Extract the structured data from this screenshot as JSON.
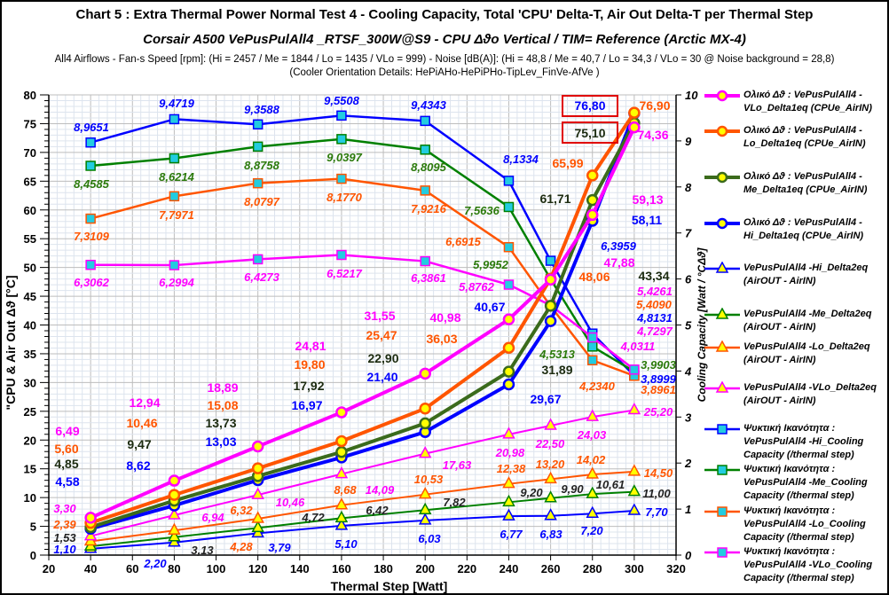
{
  "title": "Chart 5 :  Extra Thermal Power  Normal  Test  4  -  Cooling Capacity,   Total 'CPU'  Delta-T,    Air Out Delta-T per Thermal Step",
  "subtitle": "Corsair A500  VePusPulAll4 _RTSF_300W@S9 - CPU  Δϑο Vertical / TIM= Reference (Arctic MX-4)",
  "info_line1": "All4  Airflows  - Fan-s Speed [rpm]: (Hi = 2457 / Me = 1844 / Lo = 1435 / VLo = 999) - Noise  [dB(A)]: (Hi = 48,8 / Me = 40,7 / Lo = 34,3 / VLo = 30 @ Noise background = 28,8)",
  "info_line2": "(Cooler  Orientation  Details: HePiAHo-HePiPHo-TipLev_FinVe-AfVe  )",
  "colors": {
    "hi": "#0000ff",
    "me_delta1": "#3b6b1c",
    "me": "#008000",
    "lo": "#ff5500",
    "vlo": "#ff00ff",
    "marker_fill_circle": "#ffff00",
    "marker_fill_square": "#22cce0",
    "highlight_box": "#e00000"
  },
  "chart_data": {
    "type": "line",
    "xlabel": "Thermal Step [Watt]",
    "ylabel": "\"CPU  &  Air Out  Δϑ  [°C]",
    "y2label": "Cooling Capacity  [Watt / °CΔϑ]",
    "xlim": [
      20,
      320
    ],
    "ylim": [
      0,
      80
    ],
    "y2lim": [
      0,
      10
    ],
    "xticks": [
      20,
      40,
      60,
      80,
      100,
      120,
      140,
      160,
      180,
      200,
      220,
      240,
      260,
      280,
      300,
      320
    ],
    "yticks": [
      0,
      5,
      10,
      15,
      20,
      25,
      30,
      35,
      40,
      45,
      50,
      55,
      60,
      65,
      70,
      75,
      80
    ],
    "y2ticks": [
      0,
      1,
      2,
      3,
      4,
      5,
      6,
      7,
      8,
      9,
      10
    ],
    "grid": true,
    "legend_position": "right",
    "x": [
      40,
      80,
      120,
      160,
      200,
      240,
      260,
      280,
      300
    ],
    "highlighted_values": [
      "76,80",
      "75,10"
    ],
    "series": [
      {
        "name": "Ολικό Δϑ : VePusPulAll4 - VLo_Delta1eq  (CPUe_AirIN)",
        "key": "vlo",
        "kind": "delta1",
        "axis": "left",
        "values": [
          6.49,
          12.94,
          18.89,
          24.81,
          31.55,
          40.98,
          47.88,
          59.13,
          74.36
        ]
      },
      {
        "name": "Ολικό Δϑ : VePusPulAll4 - Lo_Delta1eq  (CPUe_AirIN)",
        "key": "lo",
        "kind": "delta1",
        "axis": "left",
        "values": [
          5.6,
          10.46,
          15.08,
          19.8,
          25.47,
          36.03,
          48.06,
          65.99,
          76.9
        ]
      },
      {
        "name": "Ολικό Δϑ : VePusPulAll4 - Me_Delta1eq  (CPUe_AirIN)",
        "key": "me_delta1",
        "kind": "delta1",
        "axis": "left",
        "values": [
          4.85,
          9.47,
          13.73,
          17.92,
          22.9,
          31.89,
          43.34,
          61.71,
          75.1
        ]
      },
      {
        "name": "Ολικό Δϑ : VePusPulAll4 - Hi_Delta1eq  (CPUe_AirIN)",
        "key": "hi",
        "kind": "delta1",
        "axis": "left",
        "values": [
          4.58,
          8.62,
          13.03,
          16.97,
          21.4,
          29.67,
          40.67,
          58.11,
          76.8
        ]
      },
      {
        "name": "VePusPulAll4 -Hi_Delta2eq (AirOUT - AirIN)",
        "key": "hi",
        "kind": "delta2",
        "axis": "left",
        "values": [
          1.1,
          2.2,
          3.79,
          5.1,
          6.03,
          6.77,
          6.83,
          7.2,
          7.7
        ]
      },
      {
        "name": "VePusPulAll4 -Me_Delta2eq (AirOUT - AirIN)",
        "key": "me",
        "kind": "delta2",
        "axis": "left",
        "values": [
          1.53,
          3.13,
          4.72,
          6.42,
          7.82,
          9.2,
          9.9,
          10.61,
          11.0
        ]
      },
      {
        "name": "VePusPulAll4 -Lo_Delta2eq (AirOUT - AirIN)",
        "key": "lo",
        "kind": "delta2",
        "axis": "left",
        "values": [
          2.39,
          4.28,
          6.32,
          8.68,
          10.53,
          12.38,
          13.2,
          14.02,
          14.5
        ]
      },
      {
        "name": "VePusPulAll4 -VLo_Delta2eq (AirOUT - AirIN)",
        "key": "vlo",
        "kind": "delta2",
        "axis": "left",
        "values": [
          3.3,
          6.94,
          10.46,
          14.09,
          17.63,
          20.98,
          22.5,
          24.03,
          25.2
        ]
      },
      {
        "name": "Ψυκτική Ικανότητα : VePusPulAll4 -Hi_Cooling Capacity (/thermal step)",
        "key": "hi",
        "kind": "cooling",
        "axis": "right",
        "values": [
          8.9651,
          9.4719,
          9.3588,
          9.5508,
          9.4343,
          8.1334,
          6.3959,
          4.8131,
          3.8999
        ]
      },
      {
        "name": "Ψυκτική Ικανότητα : VePusPulAll4 -Me_Cooling Capacity (/thermal step)",
        "key": "me",
        "kind": "cooling",
        "axis": "right",
        "values": [
          8.4585,
          8.6214,
          8.8758,
          9.0397,
          8.8095,
          7.5636,
          5.9952,
          4.5313,
          3.9903
        ]
      },
      {
        "name": "Ψυκτική Ικανότητα : VePusPulAll4 -Lo_Cooling Capacity (/thermal step)",
        "key": "lo",
        "kind": "cooling",
        "axis": "right",
        "values": [
          7.3109,
          7.7971,
          8.0797,
          8.177,
          7.9216,
          6.6915,
          5.409,
          4.234,
          3.8961
        ]
      },
      {
        "name": "Ψυκτική Ικανότητα : VePusPulAll4 -VLo_Cooling Capacity (/thermal step)",
        "key": "vlo",
        "kind": "cooling",
        "axis": "right",
        "values": [
          6.3062,
          6.2994,
          6.4273,
          6.5217,
          6.3861,
          5.8762,
          5.4261,
          4.7297,
          4.0311
        ]
      }
    ]
  },
  "legend": [
    {
      "line1": "Ολικό Δϑ : VePusPulAll4 -",
      "line2": "VLo_Delta1eq  (CPUe_AirIN)"
    },
    {
      "line1": "Ολικό Δϑ : VePusPulAll4 -",
      "line2": "Lo_Delta1eq  (CPUe_AirIN)"
    },
    {
      "line1": "Ολικό Δϑ : VePusPulAll4 -",
      "line2": "Me_Delta1eq  (CPUe_AirIN)"
    },
    {
      "line1": "Ολικό Δϑ : VePusPulAll4 -",
      "line2": "Hi_Delta1eq  (CPUe_AirIN)"
    },
    {
      "line1": "VePusPulAll4 -Hi_Delta2eq",
      "line2": "(AirOUT - AirIN)"
    },
    {
      "line1": "VePusPulAll4 -Me_Delta2eq",
      "line2": "(AirOUT - AirIN)"
    },
    {
      "line1": "VePusPulAll4 -Lo_Delta2eq",
      "line2": "(AirOUT - AirIN)"
    },
    {
      "line1": "VePusPulAll4 -VLo_Delta2eq",
      "line2": "(AirOUT - AirIN)"
    },
    {
      "line1": "Ψυκτική Ικανότητα :",
      "line2": "VePusPulAll4 -Hi_Cooling",
      "line3": "Capacity (/thermal step)"
    },
    {
      "line1": "Ψυκτική Ικανότητα :",
      "line2": "VePusPulAll4 -Me_Cooling",
      "line3": "Capacity (/thermal step)"
    },
    {
      "line1": "Ψυκτική Ικανότητα :",
      "line2": "VePusPulAll4 -Lo_Cooling",
      "line3": "Capacity (/thermal step)"
    },
    {
      "line1": "Ψυκτική Ικανότητα :",
      "line2": "VePusPulAll4 -VLo_Cooling",
      "line3": "Capacity (/thermal step)"
    }
  ]
}
